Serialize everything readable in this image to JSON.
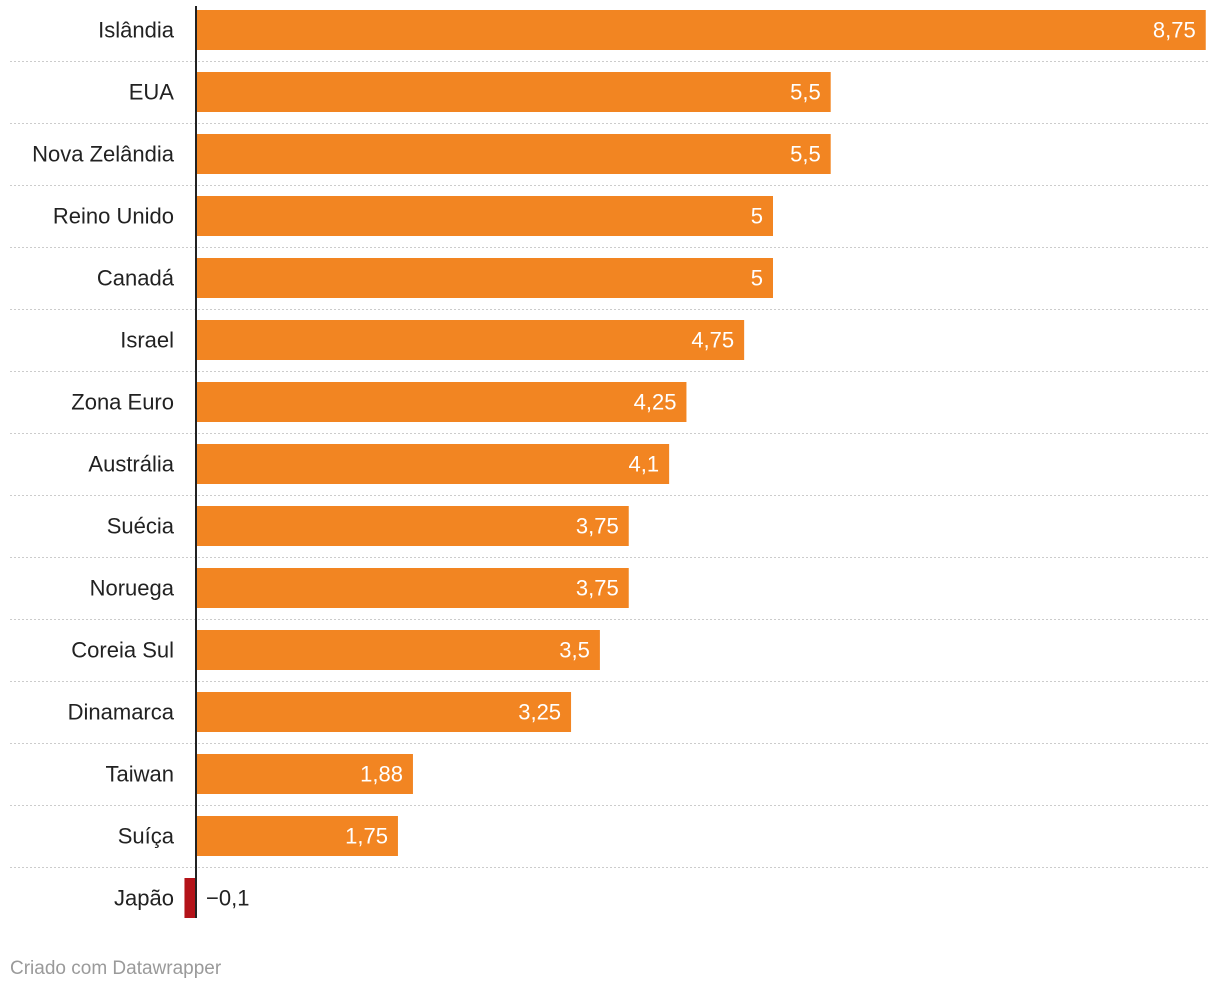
{
  "chart_data": {
    "type": "bar",
    "orientation": "horizontal",
    "title": "",
    "xlabel": "",
    "ylabel": "",
    "categories": [
      "Islândia",
      "EUA",
      "Nova Zelândia",
      "Reino Unido",
      "Canadá",
      "Israel",
      "Zona Euro",
      "Austrália",
      "Suécia",
      "Noruega",
      "Coreia Sul",
      "Dinamarca",
      "Taiwan",
      "Suíça",
      "Japão"
    ],
    "values": [
      8.75,
      5.5,
      5.5,
      5,
      5,
      4.75,
      4.25,
      4.1,
      3.75,
      3.75,
      3.5,
      3.25,
      1.88,
      1.75,
      -0.1
    ],
    "value_labels": [
      "8,75",
      "5,5",
      "5,5",
      "5",
      "5",
      "4,75",
      "4,25",
      "4,1",
      "3,75",
      "3,75",
      "3,5",
      "3,25",
      "1,88",
      "1,75",
      "−0,1"
    ],
    "xlim": [
      -0.1,
      8.75
    ],
    "grid": false,
    "legend": "none",
    "colors": {
      "positive": "#f28522",
      "negative": "#b31319",
      "label_inside": "#ffffff",
      "label_outside": "#222222",
      "separator": "#cccccc",
      "axis": "#222222"
    }
  },
  "footer": {
    "credit": "Criado com Datawrapper"
  }
}
